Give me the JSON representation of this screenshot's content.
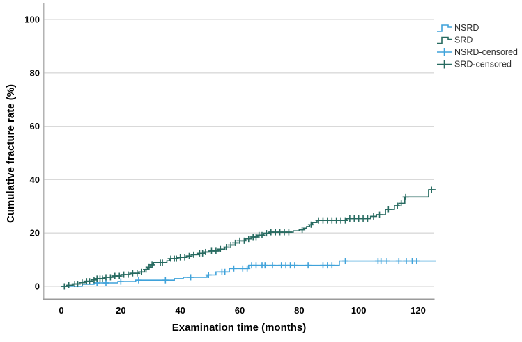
{
  "window": {
    "background": "#ffffff"
  },
  "chart_data": {
    "type": "line",
    "subtype": "kaplan-meier-cumulative-incidence-step",
    "title": "",
    "xlabel": "Examination time (months)",
    "ylabel": "Cumulative fracture rate (%)",
    "xticks": [
      0,
      20,
      40,
      60,
      80,
      100,
      120
    ],
    "yticks": [
      0,
      20,
      40,
      60,
      80,
      100
    ],
    "xlim": [
      -6,
      125.5
    ],
    "ylim": [
      0,
      105
    ],
    "grid": "horizontal-gridlines",
    "grid_color": "#d9d9d9",
    "axis_color": "#9b9b9b",
    "legend_position": "top-right-outside",
    "series": [
      {
        "name": "NSRD",
        "color": "#3fa2da",
        "end_month": 126,
        "steps": [
          [
            0,
            0
          ],
          [
            7,
            0.8
          ],
          [
            11,
            1.3
          ],
          [
            19,
            1.8
          ],
          [
            25,
            2.3
          ],
          [
            38,
            2.9
          ],
          [
            41,
            3.4
          ],
          [
            49,
            4.3
          ],
          [
            52,
            5.4
          ],
          [
            56.5,
            6.7
          ],
          [
            63,
            7.9
          ],
          [
            93.5,
            9.5
          ]
        ],
        "censor_months": [
          12,
          15,
          20,
          26,
          35,
          43.5,
          49.5,
          54,
          55,
          58,
          61,
          62.5,
          64,
          65.5,
          67.5,
          68.5,
          71,
          74,
          75.5,
          77,
          78.5,
          83,
          88,
          89.5,
          91,
          95.5,
          106.5,
          107.5,
          109.5,
          113.5,
          116,
          118,
          119.5
        ]
      },
      {
        "name": "SRD",
        "color": "#276a60",
        "end_month": 126,
        "steps": [
          [
            0,
            0
          ],
          [
            2,
            0.4
          ],
          [
            4,
            0.9
          ],
          [
            6,
            1.4
          ],
          [
            8,
            1.9
          ],
          [
            10,
            2.4
          ],
          [
            12,
            2.9
          ],
          [
            14.5,
            3.4
          ],
          [
            17,
            3.9
          ],
          [
            20,
            4.4
          ],
          [
            23,
            4.9
          ],
          [
            26,
            5.4
          ],
          [
            28,
            6.3
          ],
          [
            29,
            7.2
          ],
          [
            30,
            8.1
          ],
          [
            31,
            8.9
          ],
          [
            35.5,
            9.6
          ],
          [
            36.5,
            10.4
          ],
          [
            39,
            10.9
          ],
          [
            42,
            11.4
          ],
          [
            44,
            11.9
          ],
          [
            46,
            12.4
          ],
          [
            48,
            12.9
          ],
          [
            50,
            13.3
          ],
          [
            53,
            14
          ],
          [
            55,
            14.7
          ],
          [
            57,
            15.5
          ],
          [
            58.5,
            16.3
          ],
          [
            60,
            17.1
          ],
          [
            62,
            17.8
          ],
          [
            64,
            18.5
          ],
          [
            66,
            19.2
          ],
          [
            68,
            19.9
          ],
          [
            70,
            20.3
          ],
          [
            78,
            20.8
          ],
          [
            80,
            21.2
          ],
          [
            81.5,
            21.8
          ],
          [
            82.5,
            22.4
          ],
          [
            83.5,
            23.1
          ],
          [
            84.5,
            23.9
          ],
          [
            86,
            24.7
          ],
          [
            96,
            25.4
          ],
          [
            104,
            26.2
          ],
          [
            106,
            26.8
          ],
          [
            109,
            28.9
          ],
          [
            112,
            30.2
          ],
          [
            113.5,
            31.1
          ],
          [
            115.5,
            33.5
          ],
          [
            123.5,
            36.2
          ]
        ],
        "censor_months": [
          1,
          2.5,
          4.5,
          5.5,
          7,
          8.5,
          9.5,
          11,
          12,
          13,
          13.8,
          15,
          16.5,
          18,
          19.5,
          21,
          22.5,
          24,
          25.5,
          27,
          28.5,
          29.5,
          30.5,
          33.3,
          34,
          36.8,
          38,
          38.7,
          40,
          41.5,
          43,
          44.5,
          46.5,
          47.5,
          48.5,
          50.5,
          52,
          53.5,
          55.5,
          57,
          58.5,
          60,
          61.5,
          63,
          64.5,
          65.5,
          66.5,
          67.5,
          69,
          70.5,
          72,
          73.5,
          75,
          76.5,
          81,
          84,
          86.5,
          88,
          89.5,
          91,
          92.5,
          94,
          95.5,
          97,
          98.5,
          100,
          101.5,
          103,
          105,
          107,
          110,
          113,
          114.3,
          115.8,
          124.5
        ]
      }
    ],
    "legend": [
      {
        "label": "NSRD",
        "marker": "step-line",
        "series": 0
      },
      {
        "label": "SRD",
        "marker": "step-line",
        "series": 1
      },
      {
        "label": "NSRD-censored",
        "marker": "plus",
        "series": 0
      },
      {
        "label": "SRD-censored",
        "marker": "plus",
        "series": 1
      }
    ]
  }
}
